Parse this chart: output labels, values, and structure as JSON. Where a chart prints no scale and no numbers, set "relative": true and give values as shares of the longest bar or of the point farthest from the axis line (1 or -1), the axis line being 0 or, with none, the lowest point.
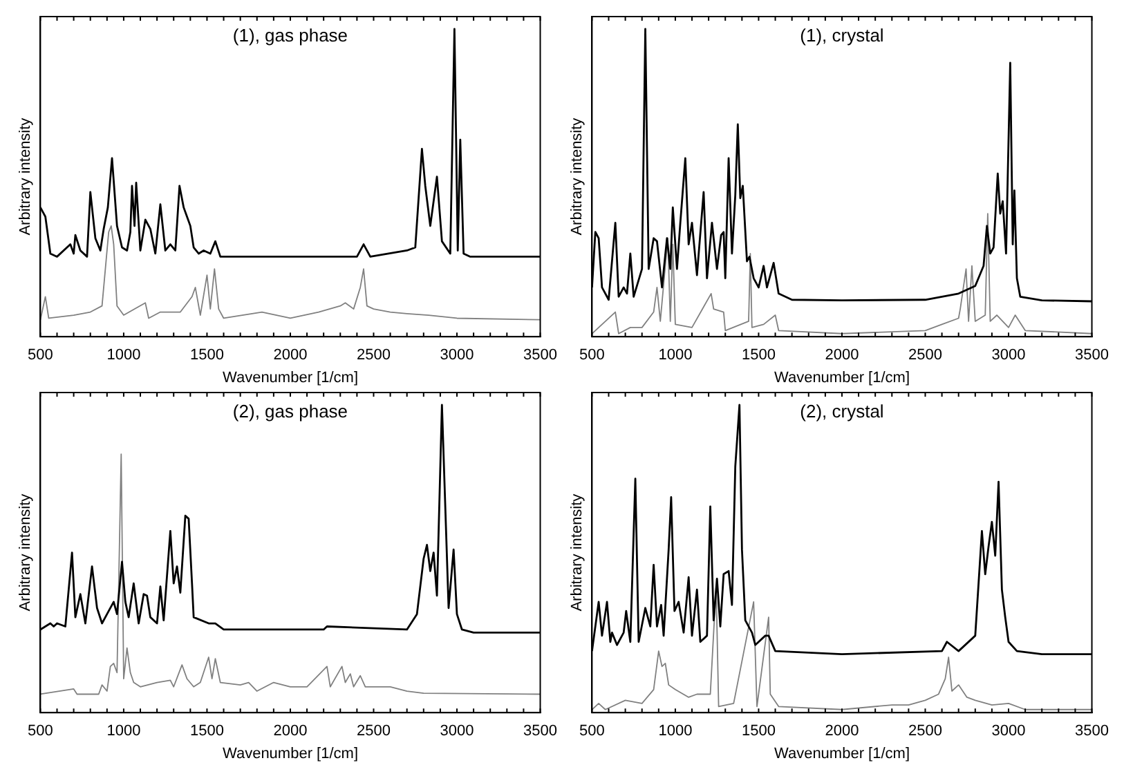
{
  "chart_data": [
    {
      "type": "line",
      "title": "(1), gas phase",
      "xlabel": "Wavenumber [1/cm]",
      "ylabel": "Arbitrary intensity",
      "relative": true,
      "xlim": [
        500,
        3500
      ],
      "xticks": [
        500,
        1000,
        1500,
        2000,
        2500,
        3000,
        3500
      ],
      "grid": false,
      "legend": false,
      "marker": "none",
      "line_style": "solid",
      "series": [
        {
          "color": "#000000",
          "x": [
            500,
            530,
            560,
            600,
            680,
            700,
            710,
            740,
            780,
            800,
            830,
            860,
            880,
            905,
            930,
            960,
            990,
            1020,
            1040,
            1050,
            1065,
            1075,
            1100,
            1130,
            1160,
            1190,
            1220,
            1250,
            1280,
            1310,
            1335,
            1360,
            1380,
            1400,
            1420,
            1450,
            1480,
            1520,
            1550,
            1580,
            1600,
            2000,
            2400,
            2440,
            2480,
            2700,
            2750,
            2790,
            2810,
            2840,
            2880,
            2910,
            2960,
            2985,
            3005,
            3020,
            3040,
            3080,
            3500
          ],
          "values": [
            0.42,
            0.39,
            0.27,
            0.26,
            0.3,
            0.27,
            0.33,
            0.28,
            0.26,
            0.47,
            0.32,
            0.28,
            0.35,
            0.42,
            0.58,
            0.36,
            0.29,
            0.28,
            0.34,
            0.49,
            0.36,
            0.5,
            0.28,
            0.38,
            0.35,
            0.27,
            0.43,
            0.28,
            0.3,
            0.28,
            0.49,
            0.42,
            0.39,
            0.36,
            0.29,
            0.27,
            0.28,
            0.27,
            0.31,
            0.26,
            0.26,
            0.26,
            0.26,
            0.3,
            0.26,
            0.28,
            0.29,
            0.61,
            0.49,
            0.36,
            0.52,
            0.31,
            0.27,
            1.0,
            0.28,
            0.64,
            0.27,
            0.26,
            0.26
          ]
        },
        {
          "color": "#808080",
          "x": [
            500,
            530,
            550,
            700,
            800,
            870,
            895,
            910,
            925,
            940,
            960,
            1000,
            1130,
            1150,
            1220,
            1340,
            1410,
            1430,
            1460,
            1500,
            1520,
            1545,
            1570,
            1600,
            1830,
            2000,
            2170,
            2300,
            2330,
            2380,
            2420,
            2440,
            2460,
            2500,
            2600,
            2700,
            2830,
            3000,
            3500
          ],
          "values": [
            0.055,
            0.13,
            0.06,
            0.07,
            0.08,
            0.1,
            0.25,
            0.34,
            0.36,
            0.3,
            0.1,
            0.07,
            0.11,
            0.06,
            0.08,
            0.08,
            0.13,
            0.16,
            0.07,
            0.2,
            0.09,
            0.22,
            0.09,
            0.06,
            0.08,
            0.06,
            0.08,
            0.1,
            0.11,
            0.09,
            0.16,
            0.22,
            0.1,
            0.09,
            0.08,
            0.075,
            0.07,
            0.06,
            0.055
          ]
        }
      ]
    },
    {
      "type": "line",
      "title": "(1), crystal",
      "xlabel": "Wavenumber [1/cm]",
      "ylabel": "Arbitrary intensity",
      "relative": true,
      "xlim": [
        500,
        3500
      ],
      "xticks": [
        500,
        1000,
        1500,
        2000,
        2500,
        3000,
        3500
      ],
      "grid": false,
      "legend": false,
      "marker": "none",
      "line_style": "solid",
      "series": [
        {
          "color": "#000000",
          "x": [
            500,
            520,
            540,
            560,
            600,
            640,
            660,
            690,
            710,
            730,
            750,
            800,
            820,
            840,
            870,
            890,
            920,
            950,
            970,
            985,
            1010,
            1030,
            1060,
            1080,
            1100,
            1130,
            1170,
            1190,
            1220,
            1250,
            1275,
            1290,
            1300,
            1320,
            1340,
            1360,
            1375,
            1390,
            1405,
            1430,
            1445,
            1470,
            1500,
            1530,
            1550,
            1590,
            1620,
            1700,
            2000,
            2500,
            2700,
            2800,
            2850,
            2870,
            2890,
            2910,
            2935,
            2950,
            2965,
            2985,
            3010,
            3025,
            3035,
            3050,
            3070,
            3200,
            3500
          ],
          "values": [
            0.16,
            0.34,
            0.32,
            0.16,
            0.12,
            0.37,
            0.13,
            0.16,
            0.14,
            0.27,
            0.13,
            0.22,
            1.0,
            0.22,
            0.32,
            0.31,
            0.16,
            0.32,
            0.22,
            0.42,
            0.22,
            0.37,
            0.58,
            0.3,
            0.37,
            0.2,
            0.47,
            0.19,
            0.37,
            0.22,
            0.33,
            0.34,
            0.19,
            0.58,
            0.27,
            0.46,
            0.69,
            0.45,
            0.49,
            0.245,
            0.26,
            0.19,
            0.16,
            0.23,
            0.16,
            0.24,
            0.14,
            0.12,
            0.118,
            0.12,
            0.14,
            0.165,
            0.23,
            0.36,
            0.27,
            0.29,
            0.53,
            0.4,
            0.44,
            0.27,
            0.89,
            0.3,
            0.475,
            0.19,
            0.13,
            0.118,
            0.115
          ]
        },
        {
          "color": "#808080",
          "x": [
            500,
            640,
            660,
            730,
            800,
            870,
            890,
            910,
            955,
            970,
            985,
            1000,
            1100,
            1215,
            1230,
            1290,
            1300,
            1440,
            1450,
            1460,
            1530,
            1600,
            1620,
            2000,
            2500,
            2600,
            2700,
            2710,
            2745,
            2760,
            2780,
            2800,
            2830,
            2860,
            2875,
            2890,
            2930,
            3000,
            3040,
            3100,
            3500
          ],
          "values": [
            0.01,
            0.08,
            0.01,
            0.03,
            0.03,
            0.08,
            0.16,
            0.05,
            0.32,
            0.05,
            0.3,
            0.04,
            0.03,
            0.14,
            0.09,
            0.08,
            0.02,
            0.05,
            0.27,
            0.03,
            0.04,
            0.07,
            0.02,
            0.01,
            0.02,
            0.04,
            0.06,
            0.09,
            0.22,
            0.05,
            0.23,
            0.05,
            0.06,
            0.07,
            0.4,
            0.05,
            0.07,
            0.03,
            0.07,
            0.02,
            0.01
          ]
        }
      ]
    },
    {
      "type": "line",
      "title": "(2), gas phase",
      "xlabel": "Wavenumber [1/cm]",
      "ylabel": "Arbitrary intensity",
      "relative": true,
      "xlim": [
        500,
        3500
      ],
      "xticks": [
        500,
        1000,
        1500,
        2000,
        2500,
        3000,
        3500
      ],
      "grid": false,
      "legend": false,
      "marker": "none",
      "line_style": "solid",
      "series": [
        {
          "color": "#000000",
          "x": [
            500,
            560,
            580,
            600,
            650,
            690,
            710,
            740,
            770,
            810,
            840,
            870,
            900,
            940,
            960,
            990,
            1010,
            1030,
            1060,
            1090,
            1120,
            1140,
            1160,
            1200,
            1220,
            1240,
            1280,
            1300,
            1320,
            1340,
            1370,
            1390,
            1410,
            1420,
            1510,
            1550,
            1600,
            2200,
            2220,
            2700,
            2760,
            2800,
            2820,
            2840,
            2860,
            2880,
            2910,
            2950,
            2980,
            3000,
            3030,
            3100,
            3500
          ],
          "values": [
            0.27,
            0.29,
            0.28,
            0.29,
            0.28,
            0.52,
            0.31,
            0.385,
            0.29,
            0.475,
            0.34,
            0.29,
            0.32,
            0.36,
            0.32,
            0.49,
            0.36,
            0.31,
            0.42,
            0.29,
            0.385,
            0.38,
            0.31,
            0.29,
            0.41,
            0.3,
            0.59,
            0.42,
            0.475,
            0.39,
            0.64,
            0.63,
            0.42,
            0.31,
            0.29,
            0.29,
            0.27,
            0.27,
            0.28,
            0.27,
            0.32,
            0.5,
            0.545,
            0.46,
            0.52,
            0.38,
            1.0,
            0.34,
            0.53,
            0.32,
            0.27,
            0.26,
            0.26
          ]
        },
        {
          "color": "#808080",
          "x": [
            500,
            700,
            720,
            850,
            870,
            900,
            920,
            940,
            960,
            985,
            1000,
            1020,
            1040,
            1060,
            1100,
            1200,
            1280,
            1300,
            1350,
            1380,
            1420,
            1460,
            1510,
            1530,
            1550,
            1580,
            1700,
            1750,
            1800,
            1900,
            2000,
            2100,
            2220,
            2240,
            2310,
            2330,
            2360,
            2380,
            2420,
            2450,
            2600,
            2700,
            2800,
            3500
          ],
          "values": [
            0.06,
            0.077,
            0.06,
            0.06,
            0.09,
            0.07,
            0.15,
            0.16,
            0.13,
            0.84,
            0.11,
            0.21,
            0.13,
            0.098,
            0.084,
            0.098,
            0.105,
            0.084,
            0.155,
            0.11,
            0.084,
            0.098,
            0.18,
            0.11,
            0.175,
            0.098,
            0.09,
            0.098,
            0.07,
            0.098,
            0.084,
            0.084,
            0.15,
            0.084,
            0.15,
            0.098,
            0.126,
            0.084,
            0.12,
            0.084,
            0.084,
            0.07,
            0.063,
            0.06
          ]
        }
      ]
    },
    {
      "type": "line",
      "title": "(2), crystal",
      "xlabel": "Wavenumber [1/cm]",
      "ylabel": "Arbitrary intensity",
      "relative": true,
      "xlim": [
        500,
        3500
      ],
      "xticks": [
        500,
        1000,
        1500,
        2000,
        2500,
        3000,
        3500
      ],
      "grid": false,
      "legend": false,
      "marker": "none",
      "line_style": "solid",
      "series": [
        {
          "color": "#000000",
          "x": [
            500,
            540,
            560,
            590,
            610,
            620,
            650,
            690,
            705,
            730,
            760,
            780,
            820,
            850,
            870,
            890,
            915,
            930,
            960,
            975,
            995,
            1020,
            1050,
            1080,
            1100,
            1130,
            1150,
            1190,
            1210,
            1230,
            1250,
            1270,
            1290,
            1320,
            1340,
            1360,
            1385,
            1400,
            1420,
            1460,
            1480,
            1540,
            1560,
            1600,
            2000,
            2600,
            2630,
            2700,
            2800,
            2840,
            2860,
            2880,
            2900,
            2920,
            2940,
            2960,
            2980,
            3000,
            3050,
            3200,
            3500
          ],
          "values": [
            0.2,
            0.36,
            0.25,
            0.36,
            0.23,
            0.26,
            0.22,
            0.26,
            0.33,
            0.23,
            0.76,
            0.23,
            0.34,
            0.28,
            0.48,
            0.28,
            0.35,
            0.25,
            0.53,
            0.7,
            0.33,
            0.36,
            0.26,
            0.44,
            0.25,
            0.4,
            0.23,
            0.25,
            0.67,
            0.3,
            0.435,
            0.28,
            0.45,
            0.46,
            0.35,
            0.8,
            1.0,
            0.53,
            0.3,
            0.26,
            0.22,
            0.25,
            0.25,
            0.2,
            0.19,
            0.2,
            0.23,
            0.2,
            0.25,
            0.59,
            0.45,
            0.54,
            0.62,
            0.51,
            0.75,
            0.4,
            0.31,
            0.23,
            0.2,
            0.19,
            0.19
          ]
        },
        {
          "color": "#808080",
          "x": [
            500,
            540,
            580,
            700,
            800,
            870,
            900,
            920,
            940,
            960,
            1000,
            1080,
            1130,
            1210,
            1245,
            1260,
            1350,
            1470,
            1490,
            1560,
            1570,
            1620,
            2000,
            2300,
            2400,
            2500,
            2580,
            2620,
            2640,
            2660,
            2700,
            2750,
            2800,
            2900,
            3000,
            3100,
            3500
          ],
          "values": [
            0.01,
            0.03,
            0.01,
            0.04,
            0.03,
            0.075,
            0.2,
            0.15,
            0.16,
            0.09,
            0.075,
            0.05,
            0.06,
            0.06,
            0.41,
            0.02,
            0.03,
            0.36,
            0.02,
            0.31,
            0.06,
            0.02,
            0.01,
            0.025,
            0.025,
            0.04,
            0.06,
            0.11,
            0.18,
            0.07,
            0.09,
            0.05,
            0.04,
            0.025,
            0.03,
            0.01,
            0.01
          ]
        }
      ]
    }
  ]
}
